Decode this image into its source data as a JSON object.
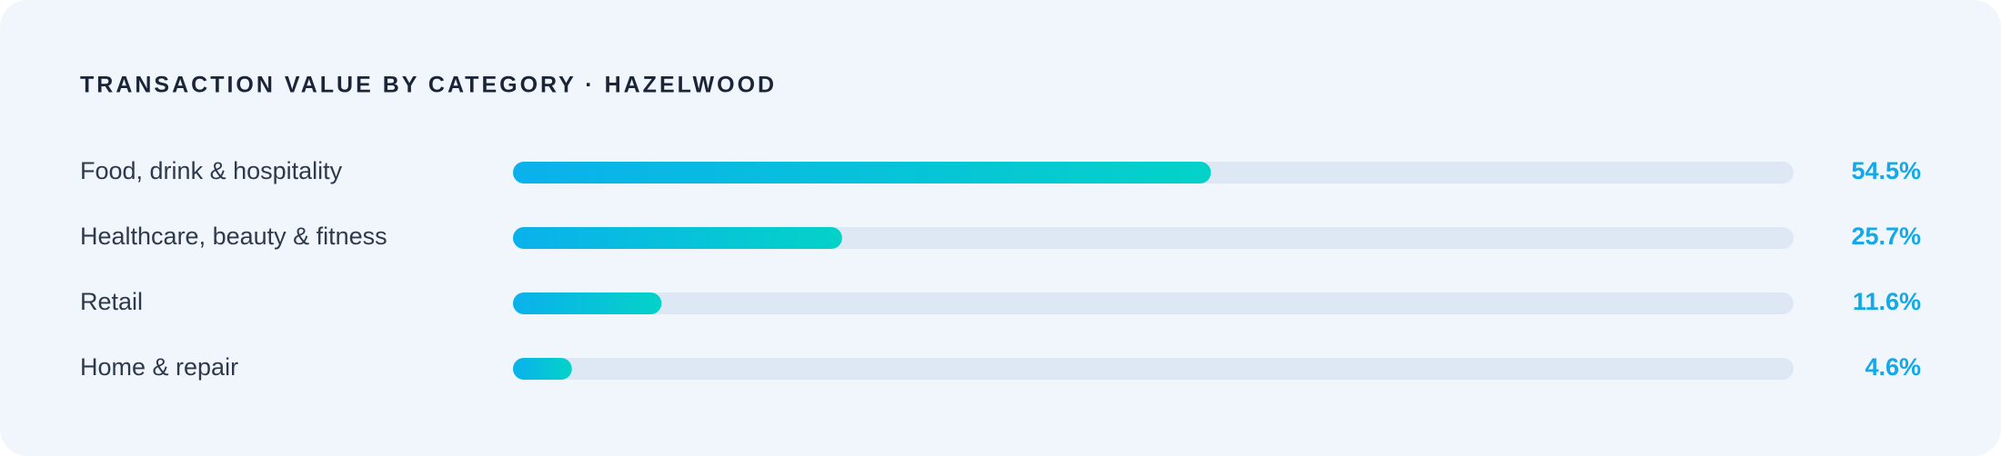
{
  "chart_data": {
    "type": "bar",
    "orientation": "horizontal",
    "title": "TRANSACTION VALUE BY CATEGORY · HAZELWOOD",
    "categories": [
      "Food, drink & hospitality",
      "Healthcare, beauty & fitness",
      "Retail",
      "Home & repair"
    ],
    "values": [
      54.5,
      25.7,
      11.6,
      4.6
    ],
    "value_labels": [
      "54.5%",
      "25.7%",
      "11.6%",
      "4.6%"
    ],
    "xlim": [
      0,
      100
    ],
    "gradient": [
      "#0ab1ec",
      "#04d2c8"
    ],
    "track_color": "#dde8f4",
    "label_color": "#14a9e6"
  }
}
